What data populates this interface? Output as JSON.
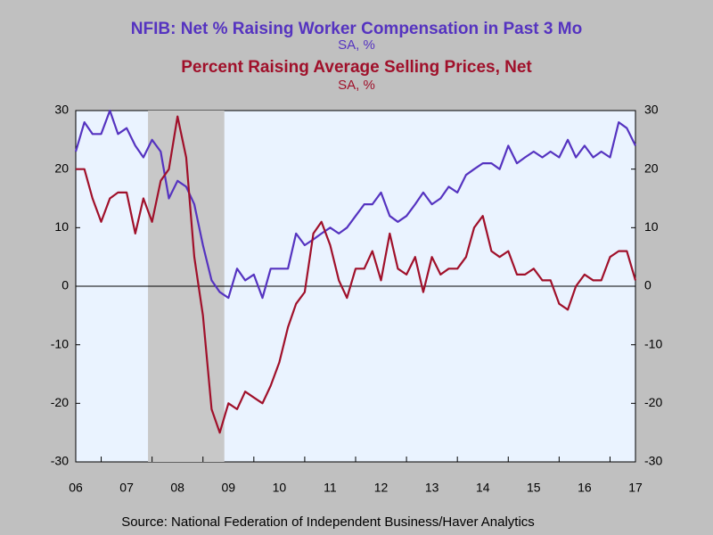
{
  "chart_data": {
    "type": "line",
    "series": [
      {
        "name": "NFIB: Net % Raising Worker Compensation in Past 3 Mo",
        "unit": "SA, %",
        "color": "#5533c0",
        "values": [
          23,
          28,
          26,
          26,
          30,
          26,
          27,
          24,
          22,
          25,
          23,
          15,
          18,
          17,
          14,
          7,
          1,
          -1,
          -2,
          3,
          1,
          2,
          -2,
          3,
          3,
          3,
          9,
          7,
          8,
          9,
          10,
          9,
          10,
          12,
          14,
          14,
          16,
          12,
          11,
          12,
          14,
          16,
          14,
          15,
          17,
          16,
          19,
          20,
          21,
          21,
          20,
          24,
          21,
          22,
          23,
          22,
          23,
          22,
          25,
          22,
          24,
          22,
          23,
          22,
          28,
          27,
          24
        ]
      },
      {
        "name": "Percent Raising Average Selling Prices, Net",
        "unit": "SA, %",
        "color": "#a0102a",
        "values": [
          20,
          20,
          15,
          11,
          15,
          16,
          16,
          9,
          15,
          11,
          18,
          20,
          29,
          22,
          5,
          -5,
          -21,
          -25,
          -20,
          -21,
          -18,
          -19,
          -20,
          -17,
          -13,
          -7,
          -3,
          -1,
          9,
          11,
          7,
          1,
          -2,
          3,
          3,
          6,
          1,
          9,
          3,
          2,
          5,
          -1,
          5,
          2,
          3,
          3,
          5,
          10,
          12,
          6,
          5,
          6,
          2,
          2,
          3,
          1,
          1,
          -3,
          -4,
          0,
          2,
          1,
          1,
          5,
          6,
          6,
          1
        ]
      }
    ],
    "x": [
      2006.5,
      2006.67,
      2006.83,
      2007.0,
      2007.17,
      2007.33,
      2007.5,
      2007.67,
      2007.83,
      2008.0,
      2008.17,
      2008.33,
      2008.5,
      2008.67,
      2008.83,
      2009.0,
      2009.17,
      2009.33,
      2009.5,
      2009.67,
      2009.83,
      2010.0,
      2010.17,
      2010.33,
      2010.5,
      2010.67,
      2010.83,
      2011.0,
      2011.17,
      2011.33,
      2011.5,
      2011.67,
      2011.83,
      2012.0,
      2012.17,
      2012.33,
      2012.5,
      2012.67,
      2012.83,
      2013.0,
      2013.17,
      2013.33,
      2013.5,
      2013.67,
      2013.83,
      2014.0,
      2014.17,
      2014.33,
      2014.5,
      2014.67,
      2014.83,
      2015.0,
      2015.17,
      2015.33,
      2015.5,
      2015.67,
      2015.83,
      2016.0,
      2016.17,
      2016.33,
      2016.5,
      2016.67,
      2016.83,
      2017.0,
      2017.17,
      2017.33,
      2017.5
    ],
    "xlim": [
      2006.5,
      2017.5
    ],
    "xticks": [
      {
        "value": 2006.5,
        "label": "06"
      },
      {
        "value": 2007.5,
        "label": "07"
      },
      {
        "value": 2008.5,
        "label": "08"
      },
      {
        "value": 2009.5,
        "label": "09"
      },
      {
        "value": 2010.5,
        "label": "10"
      },
      {
        "value": 2011.5,
        "label": "11"
      },
      {
        "value": 2012.5,
        "label": "12"
      },
      {
        "value": 2013.5,
        "label": "13"
      },
      {
        "value": 2014.5,
        "label": "14"
      },
      {
        "value": 2015.5,
        "label": "15"
      },
      {
        "value": 2016.5,
        "label": "16"
      },
      {
        "value": 2017.5,
        "label": "17"
      }
    ],
    "ylim": [
      -30,
      30
    ],
    "yticks": [
      -30,
      -20,
      -10,
      0,
      10,
      20,
      30
    ],
    "y2lim": [
      -30,
      30
    ],
    "y2ticks": [
      -30,
      -20,
      -10,
      0,
      10,
      20,
      30
    ],
    "shaded_ranges": [
      [
        2007.92,
        2009.42
      ]
    ],
    "source": "Source:  National Federation of Independent Business/Haver Analytics"
  }
}
